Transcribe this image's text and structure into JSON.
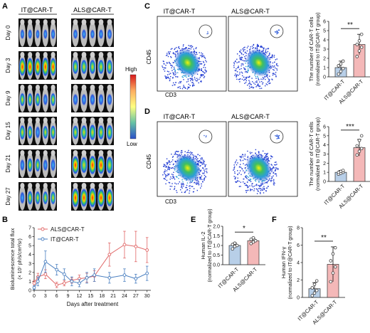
{
  "panels": {
    "A": "A",
    "B": "B",
    "C": "C",
    "D": "D",
    "E": "E",
    "F": "F"
  },
  "panel_a": {
    "groups": [
      "IT@CAR-T",
      "ALS@CAR-T"
    ],
    "days": [
      "Day 0",
      "Day 3",
      "Day 9",
      "Day 15",
      "Day 21",
      "Day 27"
    ],
    "scale_high": "High",
    "scale_low": "Low",
    "signal_strength": [
      [
        0.25,
        0.25,
        0.2,
        0.25,
        0.3,
        0.25,
        0.25,
        0.2,
        0.25,
        0.3
      ],
      [
        0.9,
        0.9,
        0.85,
        0.95,
        0.9,
        0.6,
        0.6,
        0.6,
        0.6,
        0.6
      ],
      [
        0.5,
        0.5,
        0.5,
        0.4,
        0.5,
        0.4,
        0.4,
        0.4,
        0.4,
        0.4
      ],
      [
        0.6,
        0.5,
        0.45,
        0.5,
        0.55,
        0.55,
        0.6,
        0.7,
        0.6,
        0.65
      ],
      [
        0.4,
        0.55,
        0.5,
        0.4,
        0.45,
        0.9,
        0.75,
        0.95,
        0.9,
        0.8
      ],
      [
        0.45,
        0.55,
        0.5,
        0.5,
        0.5,
        0.95,
        0.9,
        1.0,
        0.9,
        0.85
      ]
    ]
  },
  "flow": {
    "x_label": "CD3",
    "y_label": "CD45",
    "panel_c_titles": [
      "IT@CAR-T",
      "ALS@CAR-T"
    ],
    "panel_d_titles": [
      "IT@CAR-T",
      "ALS@CAR-T"
    ]
  },
  "colors": {
    "it": "#4a7fc0",
    "als": "#e06666",
    "it_fill": "#b8cfe8",
    "als_fill": "#f4b8b8"
  },
  "chart_data": [
    {
      "id": "B",
      "type": "line",
      "xlabel": "Days after treatment",
      "ylabel": "Bioluminescence total flux",
      "ylabel2": "(× 10⁷ ph/s/cm²/sr)",
      "xlim": [
        0,
        31
      ],
      "ylim": [
        0,
        7
      ],
      "xticks": [
        0,
        3,
        6,
        9,
        12,
        15,
        18,
        21,
        24,
        27,
        30
      ],
      "yticks": [
        0,
        1,
        2,
        3,
        4,
        5,
        6,
        7
      ],
      "legend_position": "top-left",
      "series": [
        {
          "name": "ALS@CAR-T",
          "x": [
            0,
            1,
            3,
            6,
            8,
            10,
            12,
            14,
            16,
            20,
            24,
            27,
            30
          ],
          "y": [
            0.8,
            1.5,
            1.8,
            0.6,
            0.8,
            1.1,
            1.3,
            1.4,
            1.6,
            4.0,
            5.1,
            4.9,
            4.5
          ],
          "err": [
            0.3,
            0.4,
            0.5,
            0.3,
            0.3,
            0.3,
            0.4,
            0.5,
            0.6,
            1.3,
            1.5,
            1.7,
            1.4
          ]
        },
        {
          "name": "IT@CAR-T",
          "x": [
            0,
            1,
            3,
            6,
            8,
            10,
            12,
            14,
            16,
            20,
            24,
            27,
            30
          ],
          "y": [
            0.3,
            1.0,
            3.2,
            2.3,
            1.8,
            1.0,
            0.8,
            1.4,
            1.7,
            1.4,
            1.7,
            1.3,
            1.9
          ],
          "err": [
            0.2,
            0.5,
            1.2,
            0.6,
            0.6,
            0.5,
            0.4,
            0.6,
            0.7,
            0.6,
            0.7,
            0.5,
            0.8
          ]
        }
      ]
    },
    {
      "id": "C",
      "type": "bar",
      "categories": [
        "IT@CAR-T",
        "ALS@CAR-T"
      ],
      "values": [
        1.0,
        3.5
      ],
      "errors": [
        0.7,
        1.1
      ],
      "points": [
        [
          0.3,
          0.6,
          0.9,
          1.2,
          1.4,
          1.7
        ],
        [
          2.2,
          2.8,
          3.2,
          3.5,
          3.9,
          4.6
        ]
      ],
      "ylabel": "The number of CAR-T cells",
      "ylabel2": "(normalized to IT@CAR-T group)",
      "ylim": [
        0,
        6
      ],
      "yticks": [
        0,
        1,
        2,
        3,
        4,
        5,
        6
      ],
      "significance": "**"
    },
    {
      "id": "D",
      "type": "bar",
      "categories": [
        "IT@CAR-T",
        "ALS@CAR-T"
      ],
      "values": [
        1.0,
        3.7
      ],
      "errors": [
        0.2,
        0.9
      ],
      "points": [
        [
          0.8,
          0.9,
          1.0,
          1.0,
          1.1,
          1.2
        ],
        [
          2.9,
          3.3,
          3.6,
          3.9,
          4.5,
          5.0
        ]
      ],
      "ylabel": "The number of CAR-T cells",
      "ylabel2": "(normalized to IT@CAR-T group)",
      "ylim": [
        0,
        6
      ],
      "yticks": [
        0,
        1,
        2,
        3,
        4,
        5,
        6
      ],
      "significance": "***"
    },
    {
      "id": "E",
      "type": "bar",
      "categories": [
        "IT@CAR-T",
        "ALS@CAR-T"
      ],
      "values": [
        1.0,
        1.25
      ],
      "errors": [
        0.12,
        0.12
      ],
      "points": [
        [
          0.82,
          0.95,
          1.0,
          1.05,
          1.12
        ],
        [
          1.1,
          1.18,
          1.25,
          1.32,
          1.4
        ]
      ],
      "ylabel": "Human IL-2",
      "ylabel2": "(normalized to IT@CAR-T group)",
      "ylim": [
        0.0,
        2.0
      ],
      "yticks": [
        0.0,
        0.5,
        1.0,
        1.5,
        2.0
      ],
      "significance": "*"
    },
    {
      "id": "F",
      "type": "bar",
      "categories": [
        "IT@CAR-T",
        "ALS@CAR-T"
      ],
      "values": [
        1.0,
        3.8
      ],
      "errors": [
        0.7,
        2.0
      ],
      "points": [
        [
          0.2,
          0.5,
          0.8,
          1.1,
          1.5,
          1.9
        ],
        [
          1.8,
          2.8,
          3.5,
          4.2,
          5.0,
          5.7
        ]
      ],
      "ylabel": "Human IFN-γ",
      "ylabel2": "(normalized to IT@CAR-T group)",
      "ylim": [
        0,
        8
      ],
      "yticks": [
        0,
        2,
        4,
        6,
        8
      ],
      "significance": "**"
    }
  ]
}
